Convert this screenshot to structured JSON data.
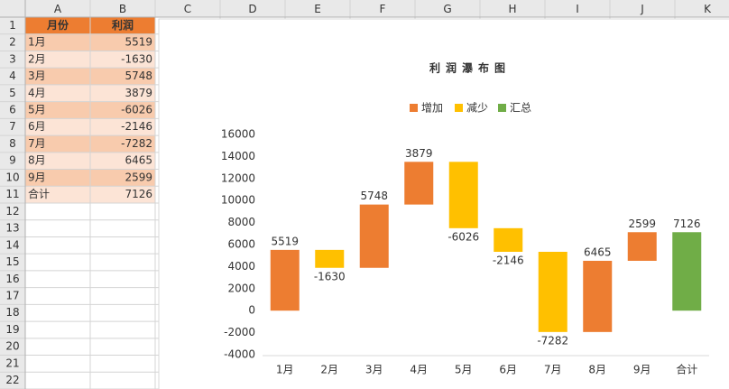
{
  "sheet": {
    "columns": [
      "A",
      "B",
      "C",
      "D",
      "E",
      "F",
      "G",
      "H",
      "I",
      "J",
      "K"
    ],
    "rows": [
      1,
      2,
      3,
      4,
      5,
      6,
      7,
      8,
      9,
      10,
      11,
      12,
      13,
      14,
      15,
      16,
      17,
      18,
      19,
      20,
      21,
      22
    ],
    "header": [
      "月份",
      "利润"
    ]
  },
  "chart_data": {
    "type": "waterfall",
    "title": "利润瀑布图",
    "categories": [
      "1月",
      "2月",
      "3月",
      "4月",
      "5月",
      "6月",
      "7月",
      "8月",
      "9月",
      "合计"
    ],
    "series": [
      {
        "name": "增加",
        "color": "#ed7d31",
        "values": [
          5519,
          null,
          5748,
          3879,
          null,
          null,
          null,
          6465,
          2599,
          null
        ]
      },
      {
        "name": "减少",
        "color": "#ffc000",
        "values": [
          null,
          -1630,
          null,
          null,
          -6026,
          -2146,
          -7282,
          null,
          null,
          null
        ]
      },
      {
        "name": "汇总",
        "color": "#70ad47",
        "values": [
          null,
          null,
          null,
          null,
          null,
          null,
          null,
          null,
          null,
          7126
        ]
      }
    ],
    "ylim": [
      -4000,
      16000
    ],
    "yticks": [
      -4000,
      -2000,
      0,
      2000,
      4000,
      6000,
      8000,
      10000,
      12000,
      14000,
      16000
    ],
    "legend": "top"
  }
}
